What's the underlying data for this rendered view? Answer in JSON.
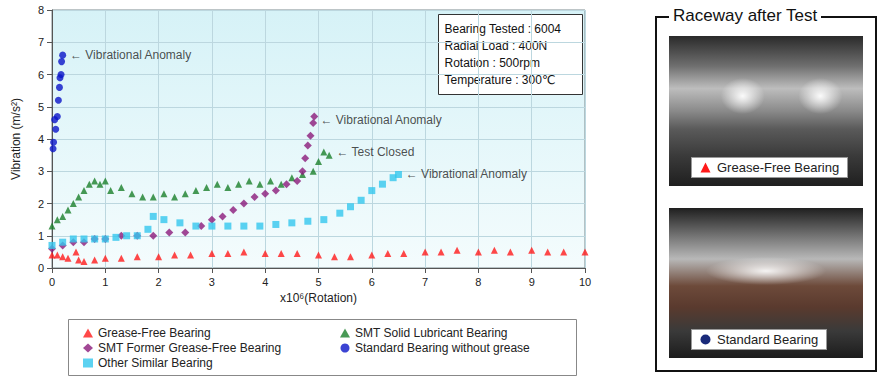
{
  "chart_data": {
    "type": "scatter",
    "x_label": "x10⁶(Rotation)",
    "y_label": "Vibration (m/s²)",
    "xlim": [
      0,
      10
    ],
    "xticks": [
      0,
      1,
      2,
      3,
      4,
      5,
      6,
      7,
      8,
      9,
      10
    ],
    "ylim": [
      0,
      8
    ],
    "yticks": [
      0,
      1,
      2,
      3,
      4,
      5,
      6,
      7,
      8
    ],
    "grid": true,
    "legend": "bottom",
    "info_box": [
      "Bearing Tested : 6004",
      "Radial Load : 400N",
      "Rotation : 500rpm",
      "Temperature : 300℃"
    ],
    "annotations": [
      {
        "text": "← Vibrational Anomaly",
        "x": 0.3,
        "y": 6.6
      },
      {
        "text": "← Vibrational Anomaly",
        "x": 5.0,
        "y": 4.6
      },
      {
        "text": "← Test Closed",
        "x": 5.3,
        "y": 3.6
      },
      {
        "text": "← Vibrational Anomaly",
        "x": 6.6,
        "y": 2.9
      }
    ],
    "series": [
      {
        "name": "Grease-Free Bearing",
        "color": "#ff1a1a",
        "marker": "triangle",
        "values": [
          [
            0,
            0.4
          ],
          [
            0.1,
            0.4
          ],
          [
            0.2,
            0.35
          ],
          [
            0.3,
            0.3
          ],
          [
            0.45,
            0.5
          ],
          [
            0.5,
            0.25
          ],
          [
            0.6,
            0.2
          ],
          [
            0.8,
            0.25
          ],
          [
            1.0,
            0.3
          ],
          [
            1.3,
            0.3
          ],
          [
            1.6,
            0.35
          ],
          [
            2.0,
            0.35
          ],
          [
            2.3,
            0.4
          ],
          [
            2.6,
            0.4
          ],
          [
            3.0,
            0.45
          ],
          [
            3.3,
            0.45
          ],
          [
            3.6,
            0.5
          ],
          [
            4.0,
            0.45
          ],
          [
            4.3,
            0.45
          ],
          [
            4.6,
            0.45
          ],
          [
            5.0,
            0.4
          ],
          [
            5.3,
            0.35
          ],
          [
            5.6,
            0.35
          ],
          [
            6.0,
            0.4
          ],
          [
            6.3,
            0.45
          ],
          [
            6.6,
            0.45
          ],
          [
            7.0,
            0.5
          ],
          [
            7.3,
            0.5
          ],
          [
            7.6,
            0.55
          ],
          [
            8.0,
            0.5
          ],
          [
            8.3,
            0.55
          ],
          [
            8.6,
            0.5
          ],
          [
            9.0,
            0.55
          ],
          [
            9.3,
            0.5
          ],
          [
            9.6,
            0.5
          ],
          [
            10.0,
            0.5
          ]
        ]
      },
      {
        "name": "SMT Solid Lubricant Bearing",
        "color": "#1a7f2a",
        "marker": "triangle",
        "values": [
          [
            0,
            1.3
          ],
          [
            0.1,
            1.5
          ],
          [
            0.2,
            1.6
          ],
          [
            0.3,
            1.8
          ],
          [
            0.4,
            2.0
          ],
          [
            0.5,
            2.2
          ],
          [
            0.6,
            2.4
          ],
          [
            0.7,
            2.6
          ],
          [
            0.8,
            2.7
          ],
          [
            0.9,
            2.6
          ],
          [
            1.0,
            2.7
          ],
          [
            1.1,
            2.4
          ],
          [
            1.3,
            2.5
          ],
          [
            1.5,
            2.3
          ],
          [
            1.7,
            2.2
          ],
          [
            1.9,
            2.2
          ],
          [
            2.1,
            2.3
          ],
          [
            2.3,
            2.2
          ],
          [
            2.5,
            2.3
          ],
          [
            2.7,
            2.4
          ],
          [
            2.9,
            2.5
          ],
          [
            3.1,
            2.6
          ],
          [
            3.3,
            2.5
          ],
          [
            3.5,
            2.6
          ],
          [
            3.7,
            2.7
          ],
          [
            3.9,
            2.6
          ],
          [
            4.1,
            2.7
          ],
          [
            4.3,
            2.6
          ],
          [
            4.5,
            2.8
          ],
          [
            4.7,
            2.9
          ],
          [
            4.9,
            3.0
          ],
          [
            5.0,
            3.3
          ],
          [
            5.1,
            3.6
          ],
          [
            5.2,
            3.5
          ]
        ]
      },
      {
        "name": "SMT Former Grease-Free Bearing",
        "color": "#8b1a7a",
        "marker": "diamond",
        "values": [
          [
            0,
            0.6
          ],
          [
            0.2,
            0.7
          ],
          [
            0.4,
            0.8
          ],
          [
            0.6,
            0.8
          ],
          [
            0.8,
            0.9
          ],
          [
            1.0,
            0.9
          ],
          [
            1.3,
            1.0
          ],
          [
            1.6,
            1.0
          ],
          [
            1.9,
            1.0
          ],
          [
            2.2,
            1.1
          ],
          [
            2.5,
            1.1
          ],
          [
            2.8,
            1.3
          ],
          [
            3.0,
            1.5
          ],
          [
            3.2,
            1.6
          ],
          [
            3.4,
            1.8
          ],
          [
            3.6,
            2.0
          ],
          [
            3.8,
            2.2
          ],
          [
            4.0,
            2.3
          ],
          [
            4.2,
            2.4
          ],
          [
            4.4,
            2.6
          ],
          [
            4.6,
            2.7
          ],
          [
            4.7,
            3.0
          ],
          [
            4.75,
            3.4
          ],
          [
            4.8,
            3.8
          ],
          [
            4.85,
            4.1
          ],
          [
            4.9,
            4.5
          ],
          [
            4.92,
            4.7
          ]
        ]
      },
      {
        "name": "Standard Bearing without grease",
        "color": "#0a14c8",
        "marker": "circle",
        "values": [
          [
            0.02,
            3.7
          ],
          [
            0.03,
            3.9
          ],
          [
            0.05,
            4.6
          ],
          [
            0.07,
            4.3
          ],
          [
            0.1,
            4.7
          ],
          [
            0.12,
            5.2
          ],
          [
            0.14,
            5.6
          ],
          [
            0.15,
            5.9
          ],
          [
            0.17,
            6.0
          ],
          [
            0.18,
            6.4
          ],
          [
            0.2,
            6.6
          ]
        ]
      },
      {
        "name": "Other Similar Bearing",
        "color": "#33c7ee",
        "marker": "square",
        "values": [
          [
            0,
            0.7
          ],
          [
            0.2,
            0.8
          ],
          [
            0.4,
            0.9
          ],
          [
            0.6,
            0.9
          ],
          [
            0.8,
            0.9
          ],
          [
            1.0,
            0.9
          ],
          [
            1.2,
            0.95
          ],
          [
            1.4,
            1.0
          ],
          [
            1.6,
            1.0
          ],
          [
            1.8,
            1.2
          ],
          [
            1.9,
            1.6
          ],
          [
            2.1,
            1.5
          ],
          [
            2.4,
            1.4
          ],
          [
            2.7,
            1.3
          ],
          [
            3.0,
            1.3
          ],
          [
            3.3,
            1.3
          ],
          [
            3.6,
            1.3
          ],
          [
            3.9,
            1.3
          ],
          [
            4.2,
            1.35
          ],
          [
            4.5,
            1.4
          ],
          [
            4.8,
            1.45
          ],
          [
            5.1,
            1.5
          ],
          [
            5.4,
            1.7
          ],
          [
            5.6,
            1.9
          ],
          [
            5.8,
            2.1
          ],
          [
            6.0,
            2.4
          ],
          [
            6.2,
            2.6
          ],
          [
            6.4,
            2.8
          ],
          [
            6.5,
            2.9
          ]
        ]
      }
    ]
  },
  "side_panel": {
    "title": "Raceway after Test",
    "images": [
      {
        "label": "Grease-Free Bearing",
        "marker": "triangle",
        "color": "#ff1a1a"
      },
      {
        "label": "Standard Bearing",
        "marker": "circle",
        "color": "#1a2a7a"
      }
    ]
  }
}
